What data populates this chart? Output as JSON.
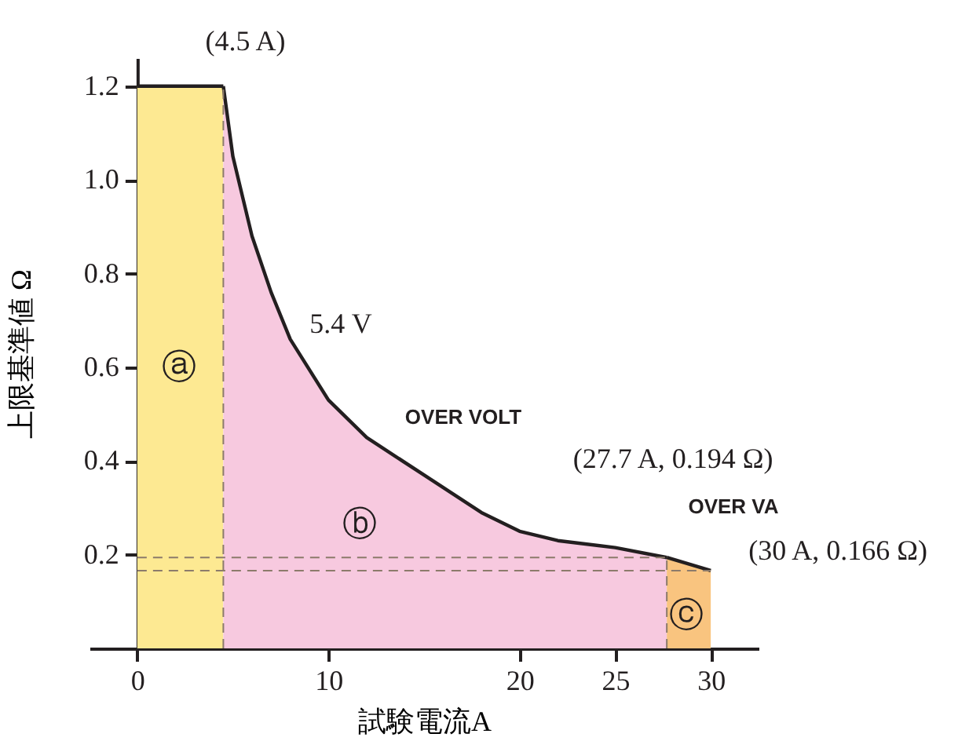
{
  "chart_data": {
    "type": "area",
    "xlabel": "試験電流A",
    "ylabel": "上限基準値 Ω",
    "xlim": [
      -2.5,
      32.5
    ],
    "ylim": [
      0,
      1.26
    ],
    "xticks": [
      0,
      10,
      20,
      25,
      30
    ],
    "yticks": [
      0.2,
      0.4,
      0.6,
      0.8,
      {
        "value": 1,
        "label": "1.0"
      },
      1.2
    ],
    "grid": false,
    "series": [
      {
        "color": "#fde992",
        "x": [
          0,
          4.5
        ],
        "values": [
          1.2,
          1.2
        ]
      },
      {
        "color": "#f7c9df",
        "x": [
          4.5,
          5,
          6,
          7,
          8,
          10,
          12,
          15,
          18,
          20,
          22,
          25,
          27.7
        ],
        "values": [
          1.2,
          1.05,
          0.88,
          0.76,
          0.66,
          0.53,
          0.45,
          0.37,
          0.29,
          0.25,
          0.23,
          0.215,
          0.194
        ]
      },
      {
        "color": "#f9c47f",
        "x": [
          27.7,
          30
        ],
        "values": [
          0.194,
          0.166
        ]
      }
    ],
    "ref_lines": [
      {
        "axis": "x",
        "value": 4.5,
        "color": "#8c7b6b",
        "line_style": "dashed"
      },
      {
        "axis": "x",
        "value": 27.7,
        "color": "#8c7b6b",
        "line_style": "dashed"
      },
      {
        "axis": "y",
        "value": 0.194,
        "color": "#8c7b6b",
        "line_style": "dashed"
      },
      {
        "axis": "y",
        "value": 0.166,
        "color": "#8c7b6b",
        "line_style": "dashed"
      }
    ],
    "annotations": [
      {
        "text": "(4.5 A)",
        "x": 4.5,
        "y": 1.2
      },
      "5.4 V",
      "OVER VOLT",
      "OVER VA",
      {
        "text": "(27.7 A, 0.194 Ω)",
        "x": 27.7,
        "y": 0.194
      },
      {
        "text": "(30 A, 0.166 Ω)",
        "x": 30,
        "y": 0.166
      },
      "ⓐ",
      "ⓑ",
      "ⓒ"
    ]
  }
}
